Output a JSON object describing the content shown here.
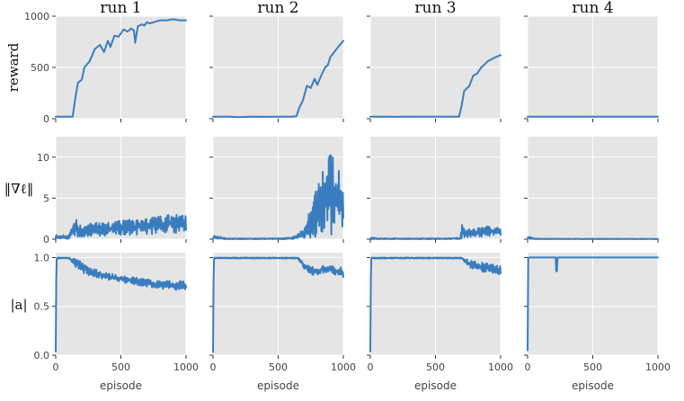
{
  "chart_data": {
    "type": "line",
    "layout": "grid",
    "rows": 3,
    "cols": 4,
    "series_color": "#3a7dbf",
    "background_color": "#e5e5e5",
    "grid": true,
    "column_titles": [
      "run 1",
      "run 2",
      "run 3",
      "run 4"
    ],
    "row_labels": [
      "reward",
      "‖∇ℓ‖",
      "|a|"
    ],
    "xlabel": "episode",
    "xlim": [
      0,
      1000
    ],
    "xticks": [
      0,
      500,
      1000
    ],
    "xtick_labels": [
      "0",
      "500",
      "1000"
    ],
    "rows_meta": [
      {
        "ylabel": "reward",
        "ylim": [
          0,
          1000
        ],
        "yticks": [
          0,
          500,
          1000
        ],
        "ytick_labels": [
          "0",
          "500",
          "1000"
        ]
      },
      {
        "ylabel": "‖∇ℓ‖",
        "ylim": [
          0,
          12.5
        ],
        "yticks": [
          0,
          5,
          10
        ],
        "ytick_labels": [
          "0",
          "5",
          "10"
        ]
      },
      {
        "ylabel": "|a|",
        "ylim": [
          0,
          1.05
        ],
        "yticks": [
          0,
          0.5,
          1.0
        ],
        "ytick_labels": [
          "0.0",
          "0.5",
          "1.0"
        ]
      }
    ],
    "panels": [
      {
        "row": 0,
        "col": 0,
        "title": "run 1",
        "series": [
          {
            "kind": "line",
            "x": [
              0,
              100,
              130,
              150,
              170,
              200,
              220,
              260,
              300,
              340,
              370,
              400,
              420,
              450,
              480,
              500,
              520,
              550,
              580,
              600,
              610,
              630,
              660,
              680,
              700,
              720,
              750,
              800,
              850,
              900,
              950,
              1000
            ],
            "y": [
              20,
              20,
              20,
              200,
              350,
              380,
              500,
              560,
              680,
              720,
              650,
              760,
              700,
              810,
              800,
              830,
              870,
              850,
              880,
              860,
              740,
              900,
              920,
              910,
              940,
              930,
              940,
              960,
              960,
              970,
              960,
              960
            ]
          }
        ]
      },
      {
        "row": 0,
        "col": 1,
        "title": "run 2",
        "series": [
          {
            "kind": "line",
            "x": [
              0,
              100,
              200,
              300,
              400,
              500,
              600,
              640,
              660,
              690,
              720,
              750,
              780,
              800,
              830,
              860,
              880,
              900,
              930,
              960,
              1000
            ],
            "y": [
              20,
              20,
              15,
              20,
              18,
              20,
              20,
              25,
              100,
              180,
              320,
              300,
              390,
              330,
              420,
              500,
              520,
              600,
              650,
              700,
              760
            ]
          }
        ]
      },
      {
        "row": 0,
        "col": 2,
        "title": "run 3",
        "series": [
          {
            "kind": "line",
            "x": [
              0,
              100,
              200,
              300,
              400,
              500,
              600,
              680,
              700,
              720,
              760,
              790,
              820,
              850,
              870,
              900,
              930,
              960,
              1000
            ],
            "y": [
              20,
              20,
              18,
              20,
              20,
              20,
              20,
              20,
              120,
              270,
              320,
              420,
              440,
              500,
              520,
              560,
              580,
              600,
              620
            ]
          }
        ]
      },
      {
        "row": 0,
        "col": 3,
        "title": "run 4",
        "series": [
          {
            "kind": "line",
            "x": [
              0,
              200,
              400,
              600,
              800,
              1000
            ],
            "y": [
              20,
              20,
              20,
              20,
              20,
              20
            ]
          }
        ]
      },
      {
        "row": 1,
        "col": 0,
        "series": [
          {
            "kind": "band",
            "x": [
              0,
              100,
              150,
              200,
              300,
              400,
              500,
              600,
              700,
              800,
              900,
              1000
            ],
            "low": [
              0,
              0,
              0.2,
              0.3,
              0.4,
              0.4,
              0.5,
              0.5,
              0.6,
              0.6,
              0.7,
              0.7
            ],
            "high": [
              0.5,
              0.5,
              2.5,
              1.8,
              2.0,
              2.2,
              2.3,
              2.5,
              2.6,
              2.8,
              3.2,
              2.8
            ]
          }
        ]
      },
      {
        "row": 1,
        "col": 1,
        "series": [
          {
            "kind": "band",
            "x": [
              0,
              100,
              200,
              300,
              400,
              500,
              600,
              650,
              700,
              750,
              800,
              850,
              900,
              950,
              1000
            ],
            "low": [
              0,
              0,
              0,
              0,
              0,
              0,
              0,
              0,
              0.1,
              0.2,
              0.3,
              0.5,
              0.5,
              0.6,
              0.6
            ],
            "high": [
              0.5,
              0.1,
              0.1,
              0.1,
              0.1,
              0.1,
              0.2,
              0.6,
              1.5,
              4.0,
              7.0,
              9.0,
              12.0,
              9.5,
              6.0
            ]
          }
        ]
      },
      {
        "row": 1,
        "col": 2,
        "series": [
          {
            "kind": "band",
            "x": [
              0,
              100,
              200,
              300,
              400,
              500,
              600,
              690,
              700,
              750,
              800,
              850,
              900,
              950,
              1000
            ],
            "low": [
              0,
              0,
              0,
              0,
              0,
              0,
              0,
              0,
              0,
              0.2,
              0.3,
              0.3,
              0.4,
              0.4,
              0.5
            ],
            "high": [
              0.2,
              0.1,
              0.1,
              0.1,
              0.1,
              0.1,
              0.1,
              0.2,
              1.8,
              1.2,
              1.3,
              1.4,
              1.6,
              1.5,
              1.4
            ]
          }
        ]
      },
      {
        "row": 1,
        "col": 3,
        "series": [
          {
            "kind": "band",
            "x": [
              0,
              50,
              100,
              500,
              1000
            ],
            "low": [
              0,
              0,
              0,
              0,
              0
            ],
            "high": [
              0.4,
              0.1,
              0.05,
              0.05,
              0.05
            ]
          }
        ]
      },
      {
        "row": 2,
        "col": 0,
        "series": [
          {
            "kind": "band",
            "x": [
              0,
              5,
              10,
              100,
              150,
              200,
              250,
              300,
              400,
              500,
              600,
              700,
              800,
              900,
              1000
            ],
            "low": [
              0.03,
              0.97,
              0.99,
              0.99,
              0.9,
              0.85,
              0.82,
              0.8,
              0.77,
              0.75,
              0.72,
              0.7,
              0.68,
              0.67,
              0.66
            ],
            "high": [
              0.05,
              1.0,
              1.0,
              1.0,
              1.0,
              0.97,
              0.92,
              0.88,
              0.84,
              0.82,
              0.8,
              0.78,
              0.76,
              0.76,
              0.76
            ]
          }
        ]
      },
      {
        "row": 2,
        "col": 1,
        "series": [
          {
            "kind": "band",
            "x": [
              0,
              5,
              10,
              600,
              650,
              700,
              750,
              800,
              850,
              900,
              950,
              1000
            ],
            "low": [
              0.03,
              0.97,
              0.99,
              0.99,
              0.99,
              0.88,
              0.82,
              0.82,
              0.84,
              0.84,
              0.82,
              0.8
            ],
            "high": [
              0.05,
              1.0,
              1.0,
              1.0,
              1.0,
              0.96,
              0.92,
              0.9,
              0.92,
              0.92,
              0.9,
              0.9
            ]
          }
        ]
      },
      {
        "row": 2,
        "col": 2,
        "series": [
          {
            "kind": "band",
            "x": [
              0,
              5,
              10,
              650,
              700,
              750,
              800,
              850,
              900,
              950,
              1000
            ],
            "low": [
              0.03,
              0.97,
              0.99,
              0.99,
              0.99,
              0.9,
              0.88,
              0.86,
              0.84,
              0.84,
              0.82
            ],
            "high": [
              0.05,
              1.0,
              1.0,
              1.0,
              1.0,
              0.98,
              0.96,
              0.95,
              0.94,
              0.93,
              0.92
            ]
          }
        ]
      },
      {
        "row": 2,
        "col": 3,
        "series": [
          {
            "kind": "line",
            "x": [
              0,
              5,
              10,
              215,
              220,
              225,
              230,
              1000
            ],
            "y": [
              0.05,
              0.99,
              1.0,
              1.0,
              0.86,
              0.86,
              1.0,
              1.0
            ]
          }
        ]
      }
    ]
  }
}
